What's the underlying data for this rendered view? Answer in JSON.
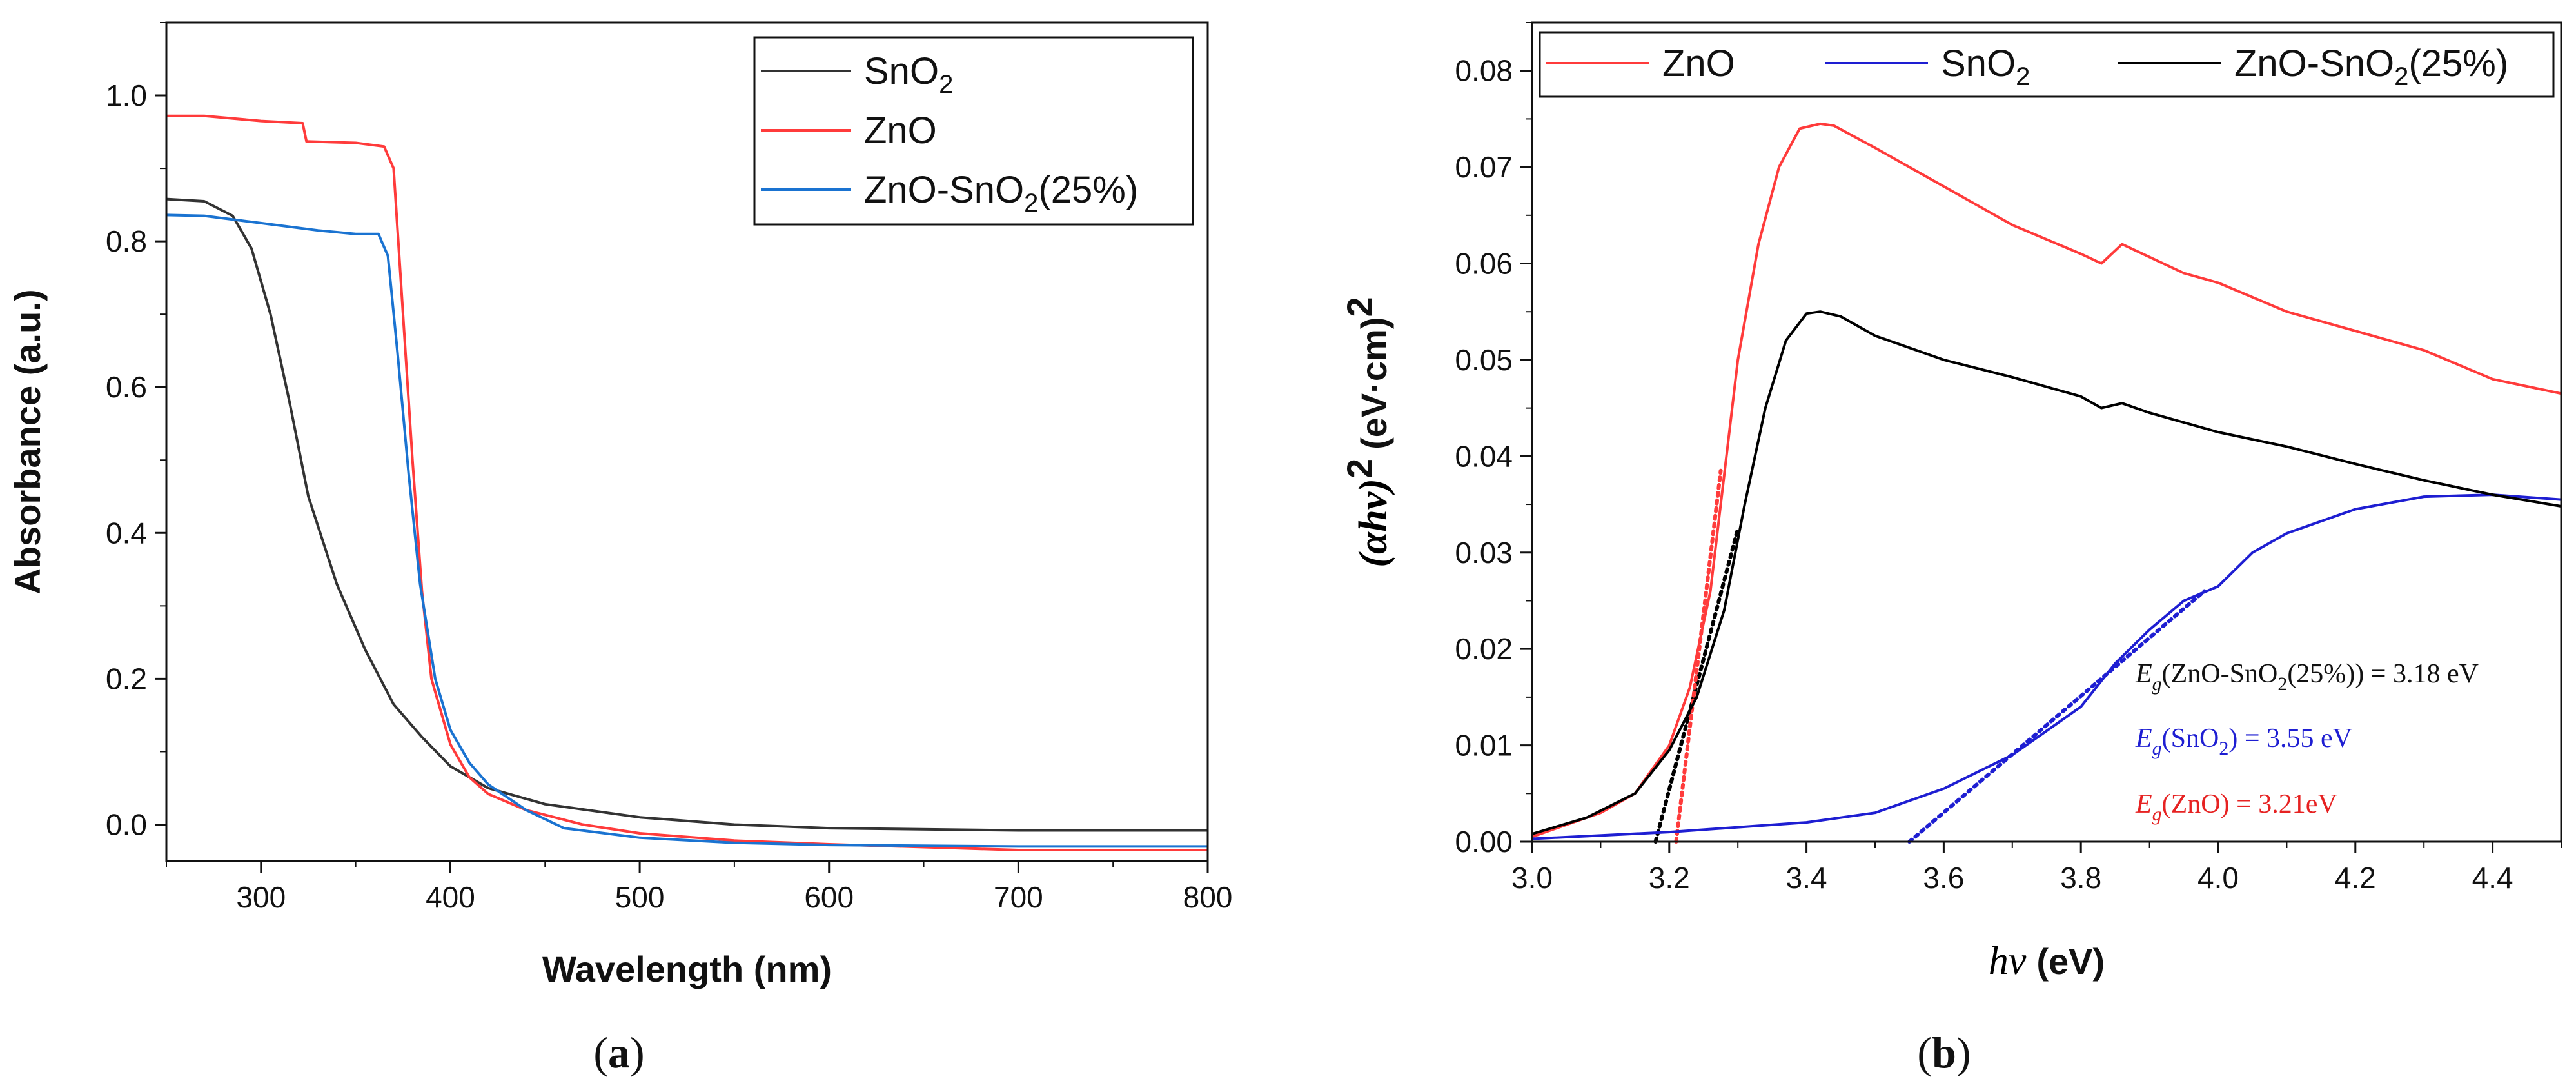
{
  "chart_data": [
    {
      "id": "a",
      "type": "line",
      "panel_label": "(a)",
      "panel_letter": "a",
      "xlabel": "Wavelength (nm)",
      "ylabel": "Absorbance (a.u.)",
      "xlim": [
        250,
        800
      ],
      "ylim": [
        -0.05,
        1.1
      ],
      "xticks": [
        300,
        400,
        500,
        600,
        700,
        800
      ],
      "yticks": [
        0.0,
        0.2,
        0.4,
        0.6,
        0.8,
        1.0
      ],
      "ytick_labels": [
        "0.0",
        "0.2",
        "0.4",
        "0.6",
        "0.8",
        "1.0"
      ],
      "legend_position": "top-right",
      "series": [
        {
          "name": "SnO2",
          "label_main": "SnO",
          "label_sub": "2",
          "label_tail": "",
          "color": "#333333",
          "points": [
            [
              250,
              0.858
            ],
            [
              270,
              0.855
            ],
            [
              285,
              0.835
            ],
            [
              295,
              0.79
            ],
            [
              305,
              0.7
            ],
            [
              315,
              0.58
            ],
            [
              325,
              0.45
            ],
            [
              340,
              0.33
            ],
            [
              355,
              0.24
            ],
            [
              370,
              0.165
            ],
            [
              385,
              0.12
            ],
            [
              400,
              0.08
            ],
            [
              420,
              0.05
            ],
            [
              450,
              0.028
            ],
            [
              500,
              0.01
            ],
            [
              550,
              0.0
            ],
            [
              600,
              -0.005
            ],
            [
              700,
              -0.008
            ],
            [
              800,
              -0.008
            ]
          ]
        },
        {
          "name": "ZnO",
          "label_main": "ZnO",
          "label_sub": "",
          "label_tail": "",
          "color": "#ff3b3b",
          "points": [
            [
              250,
              0.972
            ],
            [
              270,
              0.972
            ],
            [
              300,
              0.965
            ],
            [
              322,
              0.962
            ],
            [
              324,
              0.937
            ],
            [
              350,
              0.935
            ],
            [
              365,
              0.93
            ],
            [
              370,
              0.9
            ],
            [
              375,
              0.7
            ],
            [
              380,
              0.5
            ],
            [
              385,
              0.32
            ],
            [
              390,
              0.2
            ],
            [
              400,
              0.11
            ],
            [
              410,
              0.065
            ],
            [
              420,
              0.042
            ],
            [
              440,
              0.02
            ],
            [
              470,
              0.0
            ],
            [
              500,
              -0.012
            ],
            [
              550,
              -0.022
            ],
            [
              600,
              -0.027
            ],
            [
              700,
              -0.035
            ],
            [
              800,
              -0.035
            ]
          ]
        },
        {
          "name": "ZnO-SnO2(25%)",
          "label_main": "ZnO-SnO",
          "label_sub": "2",
          "label_tail": "(25%)",
          "color": "#1a73d1",
          "points": [
            [
              250,
              0.836
            ],
            [
              270,
              0.835
            ],
            [
              300,
              0.825
            ],
            [
              330,
              0.815
            ],
            [
              350,
              0.81
            ],
            [
              362,
              0.81
            ],
            [
              367,
              0.78
            ],
            [
              372,
              0.65
            ],
            [
              378,
              0.48
            ],
            [
              384,
              0.33
            ],
            [
              392,
              0.2
            ],
            [
              400,
              0.13
            ],
            [
              410,
              0.085
            ],
            [
              420,
              0.055
            ],
            [
              440,
              0.02
            ],
            [
              460,
              -0.005
            ],
            [
              500,
              -0.018
            ],
            [
              550,
              -0.025
            ],
            [
              600,
              -0.028
            ],
            [
              700,
              -0.03
            ],
            [
              800,
              -0.03
            ]
          ]
        }
      ]
    },
    {
      "id": "b",
      "type": "line",
      "panel_label": "(b)",
      "panel_letter": "b",
      "xlabel": "hν (eV)",
      "xlabel_symbol": "hν",
      "xlabel_unit": "(eV)",
      "ylabel": "(αhν)² (eV·cm)²",
      "ylabel_symbol": "(αhν)",
      "ylabel_power": "2",
      "ylabel_unit": "(eV·cm)",
      "xlim": [
        3.0,
        4.5
      ],
      "ylim": [
        0.0,
        0.085
      ],
      "xticks": [
        3.0,
        3.2,
        3.4,
        3.6,
        3.8,
        4.0,
        4.2,
        4.4
      ],
      "xtick_labels": [
        "3.0",
        "3.2",
        "3.4",
        "3.6",
        "3.8",
        "4.0",
        "4.2",
        "4.4"
      ],
      "yticks": [
        0.0,
        0.01,
        0.02,
        0.03,
        0.04,
        0.05,
        0.06,
        0.07,
        0.08
      ],
      "ytick_labels": [
        "0.00",
        "0.01",
        "0.02",
        "0.03",
        "0.04",
        "0.05",
        "0.06",
        "0.07",
        "0.08"
      ],
      "legend_position": "top",
      "series": [
        {
          "name": "ZnO",
          "label_main": "ZnO",
          "label_sub": "",
          "label_tail": "",
          "color": "#ff3b3b",
          "points": [
            [
              3.0,
              0.0005
            ],
            [
              3.1,
              0.003
            ],
            [
              3.15,
              0.005
            ],
            [
              3.2,
              0.01
            ],
            [
              3.23,
              0.016
            ],
            [
              3.26,
              0.026
            ],
            [
              3.28,
              0.038
            ],
            [
              3.3,
              0.05
            ],
            [
              3.33,
              0.062
            ],
            [
              3.36,
              0.07
            ],
            [
              3.39,
              0.074
            ],
            [
              3.42,
              0.0745
            ],
            [
              3.44,
              0.0743
            ],
            [
              3.5,
              0.072
            ],
            [
              3.6,
              0.068
            ],
            [
              3.7,
              0.064
            ],
            [
              3.8,
              0.061
            ],
            [
              3.83,
              0.06
            ],
            [
              3.86,
              0.062
            ],
            [
              3.95,
              0.059
            ],
            [
              4.0,
              0.058
            ],
            [
              4.1,
              0.055
            ],
            [
              4.2,
              0.053
            ],
            [
              4.3,
              0.051
            ],
            [
              4.4,
              0.048
            ],
            [
              4.5,
              0.0465
            ]
          ]
        },
        {
          "name": "SnO2",
          "label_main": "SnO",
          "label_sub": "2",
          "label_tail": "",
          "color": "#1e1ed2",
          "points": [
            [
              3.0,
              0.0003
            ],
            [
              3.2,
              0.001
            ],
            [
              3.4,
              0.002
            ],
            [
              3.5,
              0.003
            ],
            [
              3.6,
              0.0055
            ],
            [
              3.7,
              0.009
            ],
            [
              3.75,
              0.0115
            ],
            [
              3.8,
              0.014
            ],
            [
              3.85,
              0.0185
            ],
            [
              3.9,
              0.022
            ],
            [
              3.95,
              0.025
            ],
            [
              4.0,
              0.0265
            ],
            [
              4.05,
              0.03
            ],
            [
              4.1,
              0.032
            ],
            [
              4.2,
              0.0345
            ],
            [
              4.3,
              0.0358
            ],
            [
              4.4,
              0.036
            ],
            [
              4.5,
              0.0355
            ]
          ]
        },
        {
          "name": "ZnO-SnO2(25%)",
          "label_main": "ZnO-SnO",
          "label_sub": "2",
          "label_tail": "(25%)",
          "color": "#000000",
          "points": [
            [
              3.0,
              0.0008
            ],
            [
              3.08,
              0.0025
            ],
            [
              3.15,
              0.005
            ],
            [
              3.2,
              0.0095
            ],
            [
              3.24,
              0.015
            ],
            [
              3.28,
              0.024
            ],
            [
              3.31,
              0.035
            ],
            [
              3.34,
              0.045
            ],
            [
              3.37,
              0.052
            ],
            [
              3.4,
              0.0548
            ],
            [
              3.42,
              0.055
            ],
            [
              3.45,
              0.0545
            ],
            [
              3.5,
              0.0525
            ],
            [
              3.6,
              0.05
            ],
            [
              3.7,
              0.0482
            ],
            [
              3.8,
              0.0462
            ],
            [
              3.83,
              0.045
            ],
            [
              3.86,
              0.0455
            ],
            [
              3.9,
              0.0445
            ],
            [
              4.0,
              0.0425
            ],
            [
              4.1,
              0.041
            ],
            [
              4.2,
              0.0392
            ],
            [
              4.3,
              0.0375
            ],
            [
              4.4,
              0.036
            ],
            [
              4.5,
              0.0348
            ]
          ]
        }
      ],
      "fit_lines": [
        {
          "name": "ZnO-SnO2(25%) fit",
          "color": "#000000",
          "points": [
            [
              3.18,
              0.0
            ],
            [
              3.3,
              0.0325
            ]
          ]
        },
        {
          "name": "ZnO fit",
          "color": "#ff3b3b",
          "points": [
            [
              3.21,
              0.0
            ],
            [
              3.275,
              0.0385
            ]
          ]
        },
        {
          "name": "SnO2 fit",
          "color": "#1e1ed2",
          "points": [
            [
              3.55,
              0.0
            ],
            [
              3.98,
              0.026
            ]
          ]
        }
      ],
      "annotations": [
        {
          "prefix": "E",
          "sub": "g",
          "mid": "(ZnO-SnO",
          "sub2": "2",
          "tail": "(25%)) = 3.18 eV",
          "color": "#111111"
        },
        {
          "prefix": "E",
          "sub": "g",
          "mid": "(SnO",
          "sub2": "2",
          "tail": ") = 3.55 eV",
          "color": "#1e1ed2"
        },
        {
          "prefix": "E",
          "sub": "g",
          "mid": "(ZnO) = 3.21eV",
          "sub2": "",
          "tail": "",
          "color": "#e62222"
        }
      ]
    }
  ]
}
